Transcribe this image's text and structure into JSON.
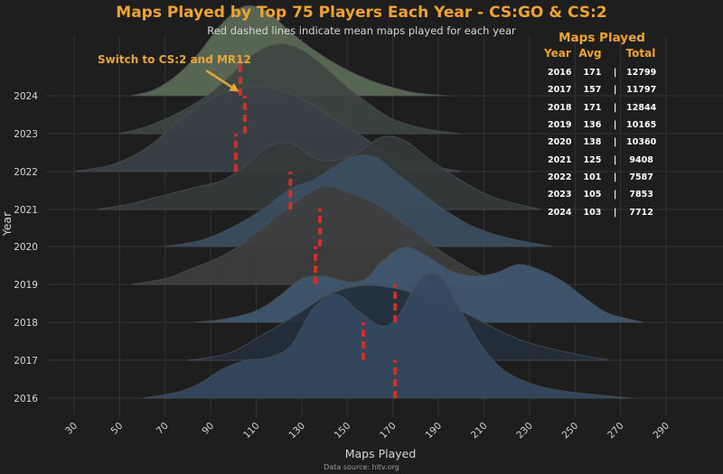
{
  "colors": {
    "background": "#1e1e1e",
    "title": "#f0a330",
    "mean_line": "#d0302a",
    "annotation": "#e9a53a"
  },
  "chart_data": {
    "type": "ridgeline",
    "title": "Maps Played by Top 75 Players Each Year - CS:GO & CS:2",
    "subtitle": "Red dashed lines indicate mean maps played for each year",
    "xlabel": "Maps Played",
    "ylabel": "Year",
    "xlim": [
      20,
      300
    ],
    "x_ticks": [
      30,
      50,
      70,
      90,
      110,
      130,
      150,
      170,
      190,
      210,
      230,
      250,
      270,
      290
    ],
    "source": "Data source: hltv.org",
    "annotation": "Switch to CS:2 and MR12",
    "series": [
      {
        "year": "2016",
        "mean": 171,
        "fill": "#34495f",
        "curve": [
          [
            60,
            0
          ],
          [
            75,
            0.04
          ],
          [
            85,
            0.1
          ],
          [
            95,
            0.2
          ],
          [
            105,
            0.26
          ],
          [
            115,
            0.28
          ],
          [
            125,
            0.36
          ],
          [
            135,
            0.62
          ],
          [
            145,
            0.72
          ],
          [
            155,
            0.6
          ],
          [
            165,
            0.5
          ],
          [
            172,
            0.56
          ],
          [
            180,
            0.78
          ],
          [
            186,
            0.86
          ],
          [
            192,
            0.82
          ],
          [
            200,
            0.6
          ],
          [
            210,
            0.34
          ],
          [
            220,
            0.18
          ],
          [
            235,
            0.08
          ],
          [
            255,
            0.03
          ],
          [
            275,
            0
          ]
        ]
      },
      {
        "year": "2017",
        "mean": 157,
        "fill": "#232f3c",
        "curve": [
          [
            80,
            0
          ],
          [
            90,
            0.02
          ],
          [
            100,
            0.06
          ],
          [
            110,
            0.15
          ],
          [
            120,
            0.24
          ],
          [
            130,
            0.34
          ],
          [
            140,
            0.44
          ],
          [
            150,
            0.5
          ],
          [
            160,
            0.52
          ],
          [
            170,
            0.5
          ],
          [
            180,
            0.46
          ],
          [
            190,
            0.4
          ],
          [
            200,
            0.34
          ],
          [
            210,
            0.26
          ],
          [
            220,
            0.18
          ],
          [
            230,
            0.12
          ],
          [
            245,
            0.06
          ],
          [
            265,
            0
          ]
        ]
      },
      {
        "year": "2018",
        "mean": 171,
        "fill": "#3f5870",
        "curve": [
          [
            82,
            0
          ],
          [
            95,
            0.02
          ],
          [
            110,
            0.08
          ],
          [
            120,
            0.18
          ],
          [
            130,
            0.3
          ],
          [
            140,
            0.32
          ],
          [
            150,
            0.28
          ],
          [
            158,
            0.3
          ],
          [
            165,
            0.42
          ],
          [
            175,
            0.52
          ],
          [
            185,
            0.46
          ],
          [
            195,
            0.36
          ],
          [
            205,
            0.32
          ],
          [
            215,
            0.34
          ],
          [
            225,
            0.4
          ],
          [
            235,
            0.36
          ],
          [
            245,
            0.28
          ],
          [
            255,
            0.16
          ],
          [
            265,
            0.06
          ],
          [
            280,
            0
          ]
        ]
      },
      {
        "year": "2019",
        "mean": 136,
        "fill": "#3e3e3e",
        "curve": [
          [
            55,
            0
          ],
          [
            70,
            0.04
          ],
          [
            80,
            0.1
          ],
          [
            90,
            0.16
          ],
          [
            100,
            0.24
          ],
          [
            110,
            0.36
          ],
          [
            120,
            0.48
          ],
          [
            130,
            0.6
          ],
          [
            140,
            0.68
          ],
          [
            150,
            0.64
          ],
          [
            160,
            0.58
          ],
          [
            170,
            0.48
          ],
          [
            180,
            0.36
          ],
          [
            190,
            0.24
          ],
          [
            200,
            0.14
          ],
          [
            210,
            0.06
          ],
          [
            225,
            0
          ]
        ]
      },
      {
        "year": "2020",
        "mean": 138,
        "fill": "#3a4f63",
        "curve": [
          [
            70,
            0
          ],
          [
            85,
            0.04
          ],
          [
            95,
            0.1
          ],
          [
            105,
            0.18
          ],
          [
            115,
            0.28
          ],
          [
            125,
            0.4
          ],
          [
            135,
            0.46
          ],
          [
            143,
            0.54
          ],
          [
            152,
            0.62
          ],
          [
            162,
            0.62
          ],
          [
            172,
            0.5
          ],
          [
            182,
            0.38
          ],
          [
            192,
            0.26
          ],
          [
            205,
            0.14
          ],
          [
            220,
            0.06
          ],
          [
            240,
            0
          ]
        ]
      },
      {
        "year": "2021",
        "mean": 125,
        "fill": "#343a3a",
        "curve": [
          [
            40,
            0
          ],
          [
            55,
            0.04
          ],
          [
            70,
            0.1
          ],
          [
            85,
            0.16
          ],
          [
            95,
            0.2
          ],
          [
            105,
            0.3
          ],
          [
            112,
            0.4
          ],
          [
            120,
            0.46
          ],
          [
            128,
            0.44
          ],
          [
            135,
            0.36
          ],
          [
            145,
            0.34
          ],
          [
            155,
            0.4
          ],
          [
            165,
            0.5
          ],
          [
            175,
            0.48
          ],
          [
            185,
            0.36
          ],
          [
            200,
            0.2
          ],
          [
            215,
            0.08
          ],
          [
            235,
            0
          ]
        ]
      },
      {
        "year": "2022",
        "mean": 101,
        "fill": "#3a4148",
        "curve": [
          [
            30,
            0
          ],
          [
            45,
            0.04
          ],
          [
            55,
            0.1
          ],
          [
            65,
            0.2
          ],
          [
            75,
            0.34
          ],
          [
            85,
            0.46
          ],
          [
            95,
            0.54
          ],
          [
            105,
            0.58
          ],
          [
            115,
            0.58
          ],
          [
            125,
            0.54
          ],
          [
            135,
            0.46
          ],
          [
            145,
            0.36
          ],
          [
            155,
            0.26
          ],
          [
            165,
            0.16
          ],
          [
            180,
            0.06
          ],
          [
            200,
            0
          ]
        ]
      },
      {
        "year": "2023",
        "mean": 105,
        "fill": "#3c4541",
        "curve": [
          [
            50,
            0
          ],
          [
            60,
            0.04
          ],
          [
            70,
            0.1
          ],
          [
            80,
            0.18
          ],
          [
            90,
            0.28
          ],
          [
            100,
            0.42
          ],
          [
            110,
            0.56
          ],
          [
            120,
            0.62
          ],
          [
            130,
            0.58
          ],
          [
            140,
            0.46
          ],
          [
            150,
            0.32
          ],
          [
            160,
            0.2
          ],
          [
            170,
            0.1
          ],
          [
            185,
            0.03
          ],
          [
            200,
            0
          ]
        ]
      },
      {
        "year": "2024",
        "mean": 103,
        "fill": "#5b6c58",
        "curve": [
          [
            55,
            0
          ],
          [
            65,
            0.04
          ],
          [
            75,
            0.14
          ],
          [
            85,
            0.3
          ],
          [
            95,
            0.5
          ],
          [
            105,
            0.62
          ],
          [
            115,
            0.58
          ],
          [
            125,
            0.44
          ],
          [
            135,
            0.32
          ],
          [
            145,
            0.22
          ],
          [
            155,
            0.14
          ],
          [
            165,
            0.08
          ],
          [
            180,
            0.02
          ],
          [
            195,
            0
          ]
        ]
      }
    ],
    "summary_table": {
      "title": "Maps Played",
      "headers": [
        "Year",
        "Avg",
        "Total"
      ],
      "rows": [
        {
          "year": "2016",
          "avg": "171",
          "sep": "|",
          "total": "12799"
        },
        {
          "year": "2017",
          "avg": "157",
          "sep": "|",
          "total": "11797"
        },
        {
          "year": "2018",
          "avg": "171",
          "sep": "|",
          "total": "12844"
        },
        {
          "year": "2019",
          "avg": "136",
          "sep": "|",
          "total": "10165"
        },
        {
          "year": "2020",
          "avg": "138",
          "sep": "|",
          "total": "10360"
        },
        {
          "year": "2021",
          "avg": "125",
          "sep": "|",
          "total": "9408"
        },
        {
          "year": "2022",
          "avg": "101",
          "sep": "|",
          "total": "7587"
        },
        {
          "year": "2023",
          "avg": "105",
          "sep": "|",
          "total": "7853"
        },
        {
          "year": "2024",
          "avg": "103",
          "sep": "|",
          "total": "7712"
        }
      ]
    }
  }
}
